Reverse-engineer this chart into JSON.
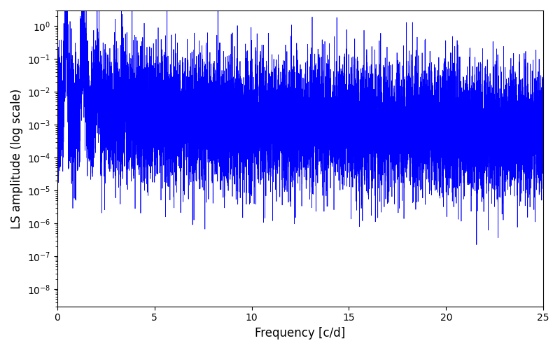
{
  "line_color": "#0000ff",
  "xlabel": "Frequency [c/d]",
  "ylabel": "LS amplitude (log scale)",
  "xlim": [
    0,
    25
  ],
  "ylim_bottom": 3e-09,
  "ylim_top": 3.0,
  "x_ticks": [
    0,
    5,
    10,
    15,
    20,
    25
  ],
  "figsize": [
    8.0,
    5.0
  ],
  "dpi": 100,
  "seed": 7,
  "n_points": 12000,
  "line_width": 0.5,
  "background_color": "#ffffff",
  "label_fontsize": 12
}
